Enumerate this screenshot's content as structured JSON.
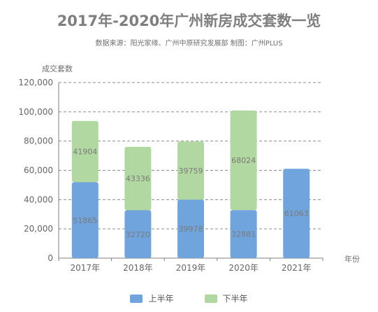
{
  "title": "2017年-2020年广州新房成交套数一览",
  "subtitle": "数据来源：阳光家缘、广州中原研究发展部    制图：广州PLUS",
  "colors": {
    "first_half": "#6fa5dc",
    "second_half": "#b2d8a1"
  },
  "chart_data": {
    "type": "bar",
    "stacked": true,
    "categories": [
      "2017年",
      "2018年",
      "2019年",
      "2020年",
      "2021年"
    ],
    "series": [
      {
        "name": "上半年",
        "values": [
          51865,
          32720,
          39978,
          32881,
          61063
        ]
      },
      {
        "name": "下半年",
        "values": [
          41904,
          43336,
          39759,
          68024,
          null
        ]
      }
    ],
    "ylabel": "成交套数",
    "xlabel": "年份",
    "ylim": [
      0,
      120000
    ],
    "yticks": [
      "0",
      "20,000",
      "40,000",
      "60,000",
      "80,000",
      "100,000",
      "120,000"
    ],
    "grid": true,
    "legend": "bottom-center"
  }
}
